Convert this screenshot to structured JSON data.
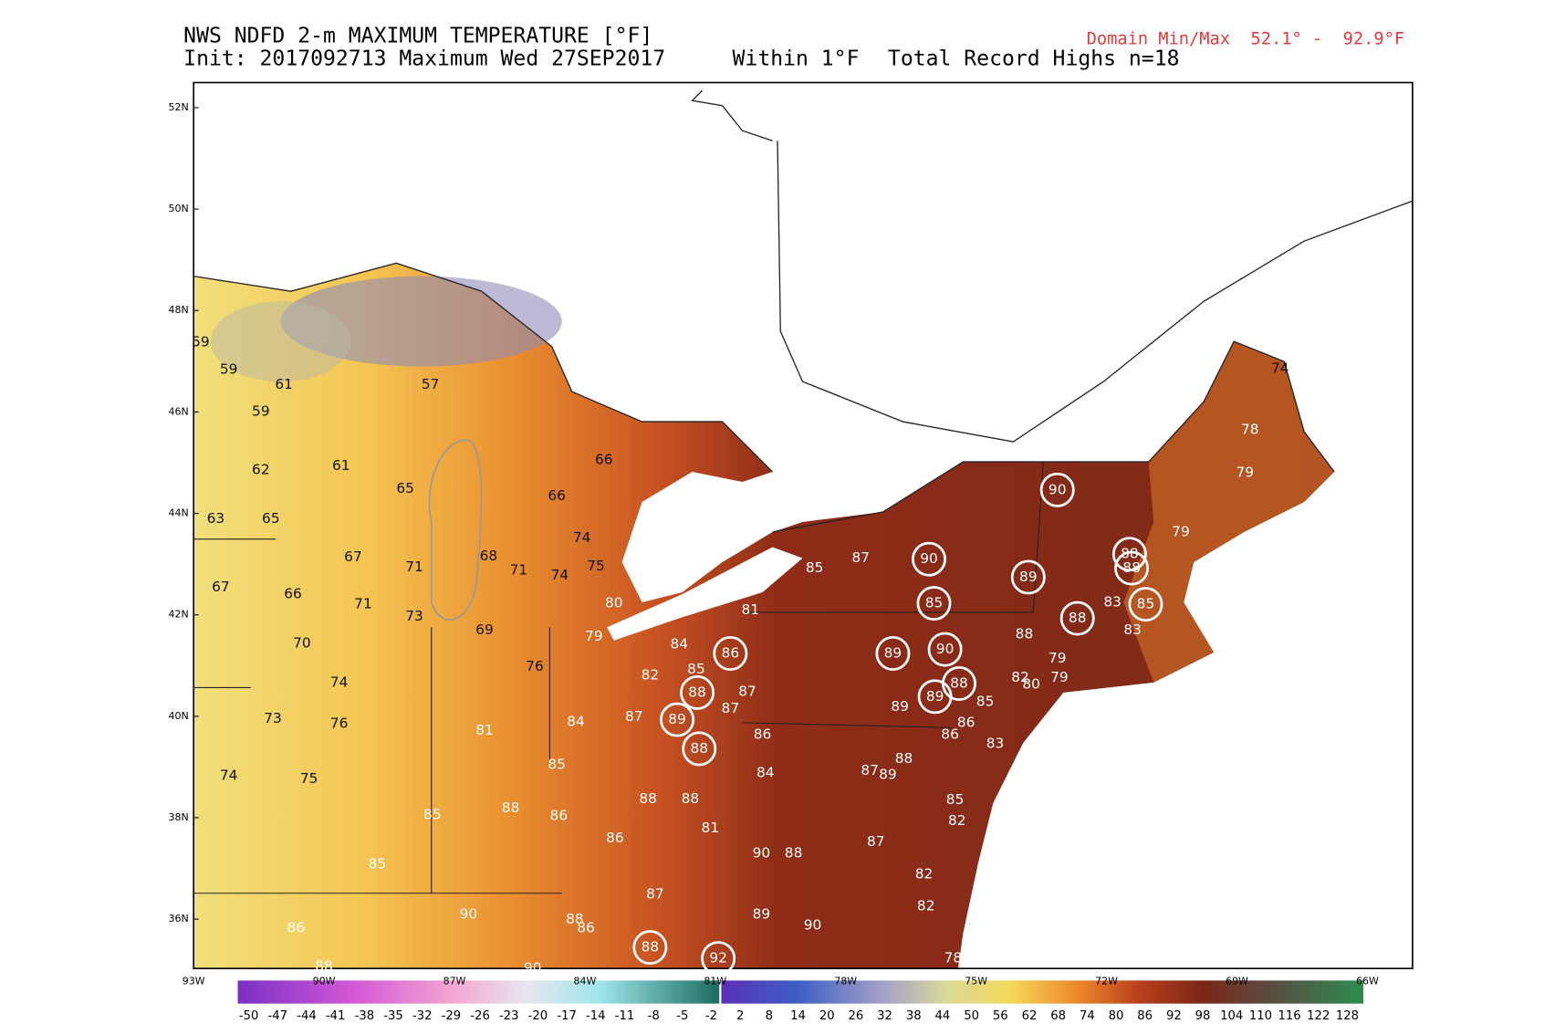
{
  "header": {
    "title": "NWS NDFD 2-m MAXIMUM TEMPERATURE [°F]",
    "subtitle": "Init: 2017092713 Maximum Wed 27SEP2017",
    "threshold": "Within 1°F",
    "record_count": "Total Record Highs n=18",
    "domain_range": "Domain Min/Max  52.1° -  92.9°F"
  },
  "map": {
    "lat_ticks": [
      "52N",
      "50N",
      "48N",
      "46N",
      "44N",
      "42N",
      "40N",
      "38N",
      "36N"
    ],
    "lon_ticks": [
      "93W",
      "90W",
      "87W",
      "84W",
      "81W",
      "78W",
      "75W",
      "72W",
      "69W",
      "66W"
    ],
    "labels": [
      59,
      59,
      61,
      57,
      59,
      62,
      61,
      65,
      66,
      66,
      63,
      65,
      74,
      75,
      67,
      71,
      68,
      71,
      74,
      67,
      66,
      71,
      73,
      69,
      70,
      74,
      76,
      73,
      76,
      74,
      75,
      80,
      79,
      81,
      85,
      87,
      84,
      82,
      85,
      87,
      87,
      84,
      87,
      81,
      86,
      85,
      84,
      88,
      88,
      85,
      88,
      86,
      86,
      81,
      90,
      88,
      87,
      85,
      87,
      90,
      88,
      86,
      89,
      90,
      86,
      88,
      90,
      88,
      87,
      89,
      89,
      85,
      86,
      86,
      83,
      85,
      82,
      82,
      82,
      78,
      88,
      79,
      79,
      82,
      80,
      83,
      83,
      79,
      79,
      78,
      74
    ],
    "records": [
      90,
      90,
      89,
      88,
      88,
      85,
      88,
      85,
      86,
      89,
      90,
      88,
      88,
      89,
      89,
      88,
      88,
      92
    ]
  },
  "colorbar": {
    "ticks": [
      -50,
      -47,
      -44,
      -41,
      -38,
      -35,
      -32,
      -29,
      -26,
      -23,
      -20,
      -17,
      -14,
      -11,
      -8,
      -5,
      -2,
      2,
      8,
      14,
      20,
      26,
      32,
      38,
      44,
      50,
      56,
      62,
      68,
      74,
      80,
      86,
      92,
      98,
      104,
      110,
      116,
      122,
      128
    ]
  }
}
